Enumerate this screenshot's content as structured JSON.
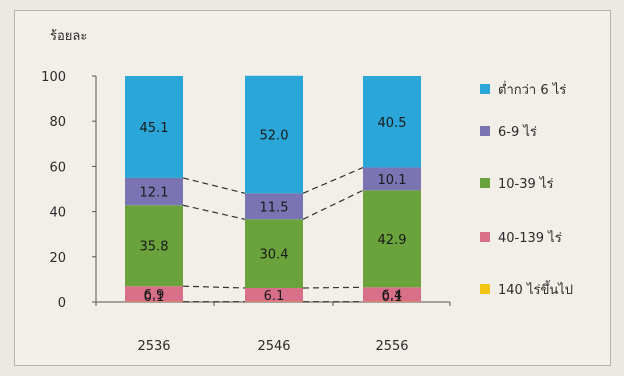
{
  "chart_data": {
    "type": "bar",
    "stacked": true,
    "unit_label": "ร้อยละ",
    "categories": [
      "2536",
      "2546",
      "2556"
    ],
    "ylim": [
      0,
      100
    ],
    "yticks": [
      0,
      20,
      40,
      60,
      80,
      100
    ],
    "grid": false,
    "legend_position": "right",
    "connector_lines": "dashed",
    "series": [
      {
        "name": "140 ไร่ขึ้นไป",
        "color": "#f2c512",
        "values": [
          0.1,
          0.1,
          0.1
        ],
        "labels": [
          "0.1",
          "",
          "0.1"
        ]
      },
      {
        "name": "40-139 ไร่",
        "color": "#d9708a",
        "values": [
          6.9,
          6.1,
          6.4
        ],
        "labels": [
          "6.9",
          "6.1",
          "6.4"
        ]
      },
      {
        "name": "10-39 ไร่",
        "color": "#6aa33c",
        "values": [
          35.8,
          30.4,
          42.9
        ],
        "labels": [
          "35.8",
          "30.4",
          "42.9"
        ]
      },
      {
        "name": "6-9 ไร่",
        "color": "#7b74b3",
        "values": [
          12.1,
          11.5,
          10.1
        ],
        "labels": [
          "12.1",
          "11.5",
          "10.1"
        ]
      },
      {
        "name": "ต่ำกว่า 6 ไร่",
        "color": "#2aa7d8",
        "values": [
          45.1,
          52.0,
          40.5
        ],
        "labels": [
          "45.1",
          "52.0",
          "40.5"
        ]
      }
    ],
    "legend_order": [
      "ต่ำกว่า 6 ไร่",
      "6-9 ไร่",
      "10-39 ไร่",
      "40-139 ไร่",
      "140 ไร่ขึ้นไป"
    ]
  }
}
